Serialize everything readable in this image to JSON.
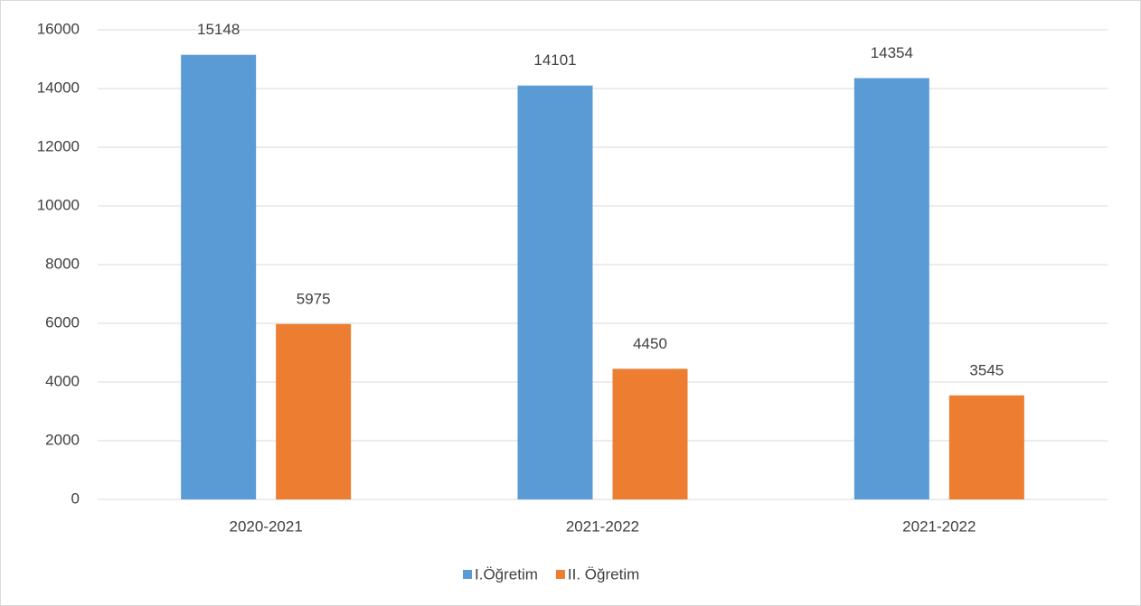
{
  "chart_data": {
    "type": "bar",
    "categories": [
      "2020-2021",
      "2021-2022",
      "2021-2022"
    ],
    "series": [
      {
        "name": "I.Öğretim",
        "color": "#5b9bd5",
        "values": [
          15148,
          14101,
          14354
        ]
      },
      {
        "name": "II. Öğretim",
        "color": "#ed7d31",
        "values": [
          5975,
          4450,
          3545
        ]
      }
    ],
    "ylim": [
      0,
      16000
    ],
    "yticks": [
      0,
      2000,
      4000,
      6000,
      8000,
      10000,
      12000,
      14000,
      16000
    ],
    "grid": true,
    "legend": "bottom"
  }
}
